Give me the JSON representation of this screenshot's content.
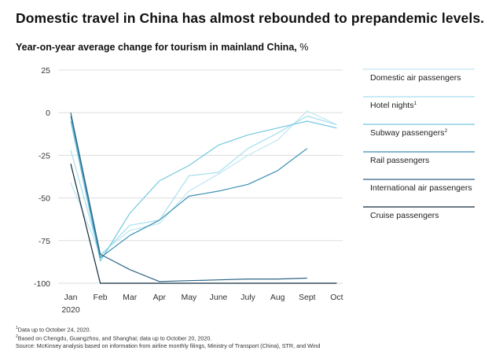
{
  "header": {
    "title": "Domestic travel in China has almost rebounded to prepandemic levels.",
    "subtitle": "Year-on-year average change for tourism in mainland China,",
    "unit": "%"
  },
  "chart_data": {
    "type": "line",
    "x": [
      "Jan",
      "Feb",
      "Mar",
      "Apr",
      "May",
      "June",
      "July",
      "Aug",
      "Sept",
      "Oct"
    ],
    "x_sublabel": "2020",
    "ylim": [
      -100,
      25
    ],
    "yticks": [
      25,
      0,
      -25,
      -50,
      -75,
      -100
    ],
    "grid": true,
    "legend_position": "right",
    "series": [
      {
        "name": "Domestic air passengers",
        "sup": "",
        "color": "#bfe6f1",
        "values": [
          -41,
          -83,
          -69,
          -65,
          -46,
          -36,
          -25,
          -16,
          1,
          -7
        ]
      },
      {
        "name": "Hotel nights",
        "sup": "1",
        "color": "#a6dfee",
        "values": [
          -22,
          -84,
          -66,
          -63,
          -37,
          -35,
          -21,
          -12,
          -2,
          -7
        ]
      },
      {
        "name": "Subway passengers",
        "sup": "2",
        "color": "#73c8e0",
        "values": [
          -5,
          -87,
          -59,
          -40,
          -31,
          -19,
          -13,
          -9,
          -5,
          -9
        ]
      },
      {
        "name": "Rail passengers",
        "sup": "",
        "color": "#3a8fb3",
        "values": [
          -2,
          -85,
          -72,
          -63,
          -49,
          -46,
          -42,
          -34,
          -21,
          null
        ]
      },
      {
        "name": "International air passengers",
        "sup": "",
        "color": "#2e6586",
        "values": [
          0,
          -83,
          -92,
          -99,
          -98.5,
          -98,
          -97.5,
          -97.5,
          -97,
          null
        ]
      },
      {
        "name": "Cruise passengers",
        "sup": "",
        "color": "#102a3c",
        "values": [
          -30,
          -100,
          -100,
          -100,
          -100,
          -100,
          -100,
          -100,
          -100,
          -100
        ]
      }
    ]
  },
  "footnotes": {
    "note1": "Data up to October 24, 2020.",
    "note1_mark": "1",
    "note2": "Based on Chengdu, Guangzhou, and Shanghai; data up to October 20, 2020.",
    "note2_mark": "2",
    "source": "Source: McKinsey analysis based on information from airline monthly filings, Ministry of Transport (China), STR, and Wind"
  }
}
